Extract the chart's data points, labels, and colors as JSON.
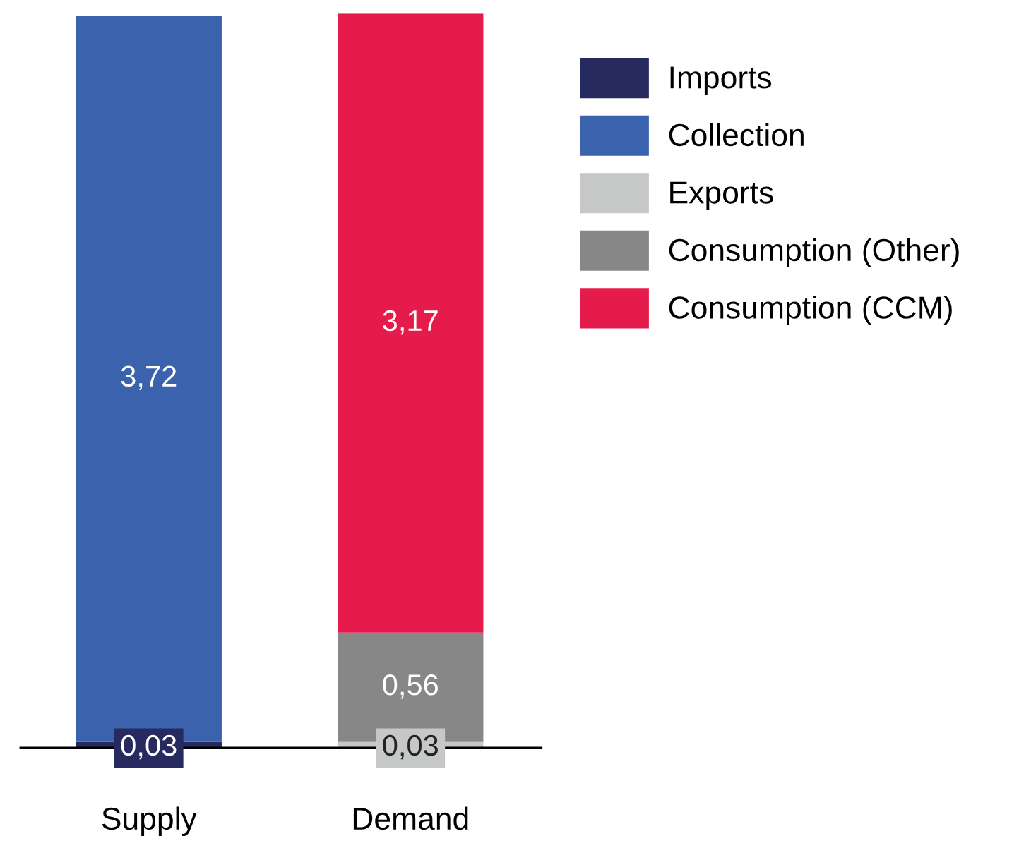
{
  "chart_data": {
    "type": "bar",
    "stacked": true,
    "legend": "top right",
    "categories": [
      "Supply",
      "Demand"
    ],
    "series": [
      {
        "name": "Imports",
        "color": "#262a5e",
        "values": [
          0.03,
          null
        ],
        "value_labels": [
          "0,03",
          null
        ]
      },
      {
        "name": "Collection",
        "color": "#3a62ad",
        "values": [
          3.72,
          null
        ],
        "value_labels": [
          "3,72",
          null
        ]
      },
      {
        "name": "Exports",
        "color": "#c6c7c7",
        "values": [
          null,
          0.03
        ],
        "value_labels": [
          null,
          "0,03"
        ]
      },
      {
        "name": "Consumption (Other)",
        "color": "#878787",
        "values": [
          null,
          0.56
        ],
        "value_labels": [
          null,
          "0,56"
        ]
      },
      {
        "name": "Consumption (CCM)",
        "color": "#e41b4b",
        "values": [
          null,
          3.17
        ],
        "value_labels": [
          null,
          "3,17"
        ]
      }
    ]
  }
}
